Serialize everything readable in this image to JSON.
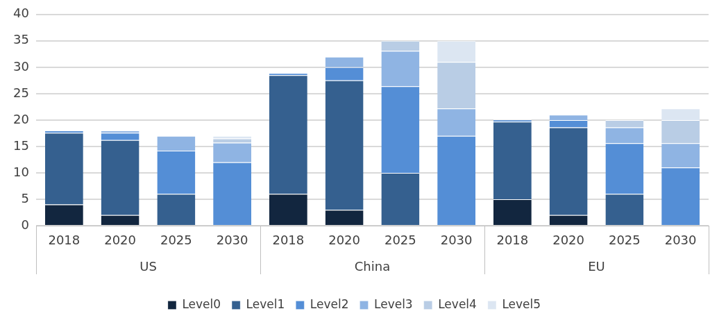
{
  "chart_data": {
    "type": "bar",
    "stacked": true,
    "categories": [
      "2018",
      "2020",
      "2025",
      "2030",
      "2018",
      "2020",
      "2025",
      "2030",
      "2018",
      "2020",
      "2025",
      "2030"
    ],
    "annotations": [
      "US",
      "China",
      "EU"
    ],
    "series": [
      {
        "name": "Level0",
        "color": "#12263f",
        "values": [
          4,
          2,
          0,
          0,
          6,
          3,
          0,
          0,
          5,
          2,
          0,
          0
        ]
      },
      {
        "name": "Level1",
        "color": "#35608f",
        "values": [
          13.6,
          14.2,
          6,
          0,
          22.5,
          24.5,
          10,
          0,
          14.7,
          16.6,
          6,
          0
        ]
      },
      {
        "name": "Level2",
        "color": "#548ed6",
        "values": [
          0.4,
          1.4,
          8.2,
          12,
          0.4,
          2.5,
          16.4,
          17,
          0.4,
          1.4,
          9.6,
          11
        ]
      },
      {
        "name": "Level3",
        "color": "#8fb4e3",
        "values": [
          0,
          0.4,
          2.8,
          3.7,
          0,
          2,
          6.7,
          5.2,
          0,
          1,
          3,
          4.6
        ]
      },
      {
        "name": "Level4",
        "color": "#b9cde5",
        "values": [
          0,
          0,
          0,
          0.8,
          0,
          0,
          1.9,
          8.8,
          0,
          0,
          1.4,
          4.4
        ]
      },
      {
        "name": "Level5",
        "color": "#dce6f2",
        "values": [
          0,
          0,
          0,
          0.5,
          0,
          0,
          0,
          4,
          0,
          0,
          0,
          2.2
        ]
      }
    ],
    "ylim": [
      0,
      40
    ],
    "yticks": [
      0,
      5,
      10,
      15,
      20,
      25,
      30,
      35,
      40
    ],
    "grid": "y",
    "legend": "bottom"
  }
}
